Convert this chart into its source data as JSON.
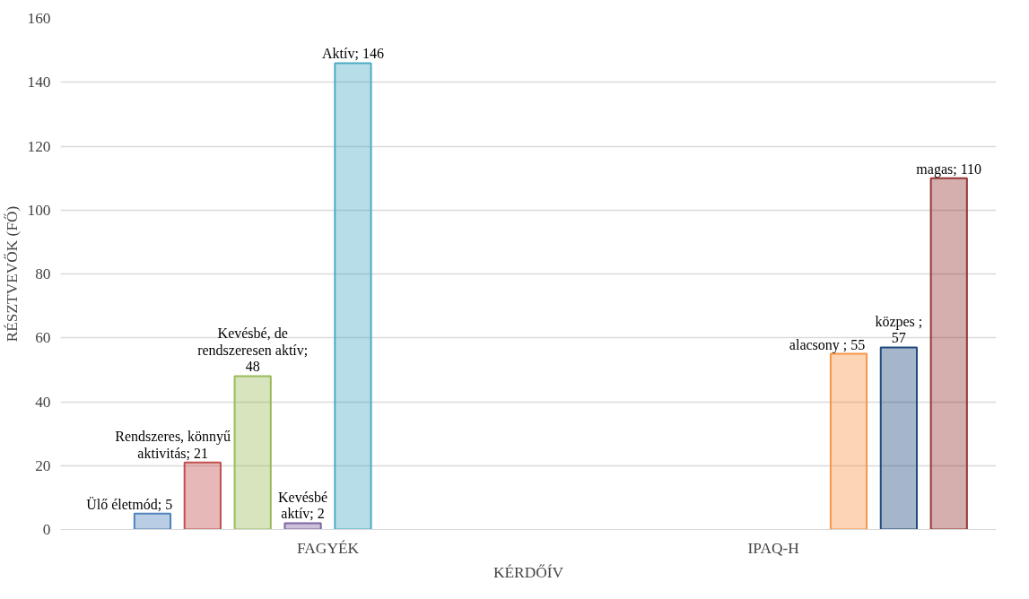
{
  "chart_data": {
    "type": "bar",
    "xlabel": "KÉRDŐÍV",
    "ylabel": "RÉSZTVEVŐK (FŐ)",
    "categories": [
      "FAGYÉK",
      "IPAQ-H"
    ],
    "ylim": [
      0,
      160
    ],
    "yticks": [
      0,
      20,
      40,
      60,
      80,
      100,
      120,
      140,
      160
    ],
    "grid": "y",
    "series": [
      {
        "color": "#4f81bd",
        "values": [
          5,
          null
        ],
        "value_labels": [
          "Ülő életmód; 5",
          null
        ]
      },
      {
        "color": "#c0504d",
        "values": [
          21,
          null
        ],
        "value_labels": [
          "Rendszeres, könnyű aktivitás; 21",
          null
        ]
      },
      {
        "color": "#9bbb59",
        "values": [
          48,
          null
        ],
        "value_labels": [
          "Kevésbé, de rendszeresen aktív; 48",
          null
        ]
      },
      {
        "color": "#8064a2",
        "values": [
          2,
          null
        ],
        "value_labels": [
          "Kevésbé aktív; 2",
          null
        ]
      },
      {
        "color": "#4bacc6",
        "values": [
          146,
          null
        ],
        "value_labels": [
          "Aktív; 146",
          null
        ]
      },
      {
        "color": "#f79646",
        "values": [
          null,
          55
        ],
        "value_labels": [
          null,
          "alacsony ; 55"
        ]
      },
      {
        "color": "#1f497d",
        "values": [
          null,
          57
        ],
        "value_labels": [
          null,
          "közpes ; 57"
        ]
      },
      {
        "color": "#943634",
        "values": [
          null,
          110
        ],
        "value_labels": [
          null,
          "magas; 110"
        ]
      }
    ]
  }
}
